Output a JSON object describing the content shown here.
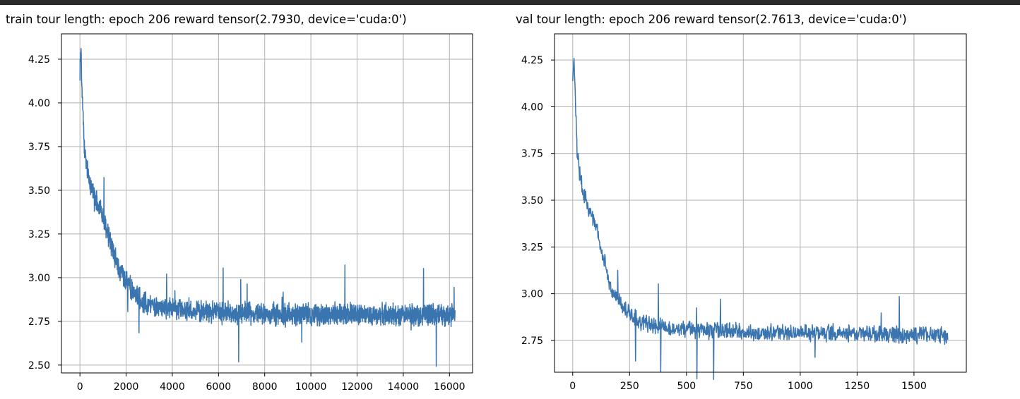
{
  "colors": {
    "top_strip": "#2b2b2b",
    "line": "#3b75af",
    "grid": "#b0b0b0",
    "axes": "#000000",
    "background": "#ffffff"
  },
  "chart_data": [
    {
      "type": "line",
      "title": "train tour length: epoch 206 reward tensor(2.7930, device='cuda:0')",
      "xlabel": "",
      "ylabel": "",
      "xlim": [
        -800,
        17000
      ],
      "ylim": [
        2.455,
        4.395
      ],
      "grid": true,
      "xticks": [
        0,
        2000,
        4000,
        6000,
        8000,
        10000,
        12000,
        14000,
        16000
      ],
      "xtick_labels": [
        "0",
        "2000",
        "4000",
        "6000",
        "8000",
        "10000",
        "12000",
        "14000",
        "16000"
      ],
      "yticks": [
        2.5,
        2.75,
        3.0,
        3.25,
        3.5,
        3.75,
        4.0,
        4.25
      ],
      "ytick_labels": [
        "2.50",
        "2.75",
        "3.00",
        "3.25",
        "3.50",
        "3.75",
        "4.00",
        "4.25"
      ],
      "series": [
        {
          "x": [
            0,
            50,
            100,
            200,
            300,
            500,
            700,
            900,
            1100,
            1300,
            1500,
            1700,
            2000,
            2300,
            2600,
            3000,
            3500,
            4000,
            5000,
            6000,
            7000,
            8000,
            9000,
            10000,
            11000,
            12000,
            13000,
            14000,
            15000,
            16000,
            16250
          ],
          "y": [
            4.2,
            4.3,
            4.05,
            3.72,
            3.62,
            3.52,
            3.45,
            3.38,
            3.3,
            3.22,
            3.12,
            3.05,
            2.98,
            2.92,
            2.88,
            2.85,
            2.83,
            2.82,
            2.81,
            2.8,
            2.8,
            2.79,
            2.79,
            2.79,
            2.79,
            2.79,
            2.79,
            2.79,
            2.79,
            2.79,
            2.79
          ]
        }
      ]
    },
    {
      "type": "line",
      "title": "val tour length: epoch 206 reward tensor(2.7613, device='cuda:0')",
      "xlabel": "",
      "ylabel": "",
      "xlim": [
        -80,
        1730
      ],
      "ylim": [
        2.58,
        4.39
      ],
      "grid": true,
      "xticks": [
        0,
        250,
        500,
        750,
        1000,
        1250,
        1500
      ],
      "xtick_labels": [
        "0",
        "250",
        "500",
        "750",
        "1000",
        "1250",
        "1500"
      ],
      "yticks": [
        2.75,
        3.0,
        3.25,
        3.5,
        3.75,
        4.0,
        4.25
      ],
      "ytick_labels": [
        "2.75",
        "3.00",
        "3.25",
        "3.50",
        "3.75",
        "4.00",
        "4.25"
      ],
      "series": [
        {
          "x": [
            0,
            5,
            10,
            20,
            30,
            50,
            70,
            90,
            110,
            130,
            150,
            170,
            200,
            230,
            260,
            300,
            350,
            400,
            500,
            600,
            700,
            800,
            900,
            1000,
            1100,
            1200,
            1300,
            1400,
            1500,
            1600,
            1650
          ],
          "y": [
            4.15,
            4.25,
            4.1,
            3.75,
            3.65,
            3.52,
            3.45,
            3.4,
            3.33,
            3.22,
            3.12,
            3.03,
            2.97,
            2.92,
            2.88,
            2.85,
            2.83,
            2.82,
            2.81,
            2.8,
            2.8,
            2.79,
            2.79,
            2.79,
            2.79,
            2.79,
            2.78,
            2.78,
            2.78,
            2.78,
            2.77
          ]
        }
      ]
    }
  ]
}
